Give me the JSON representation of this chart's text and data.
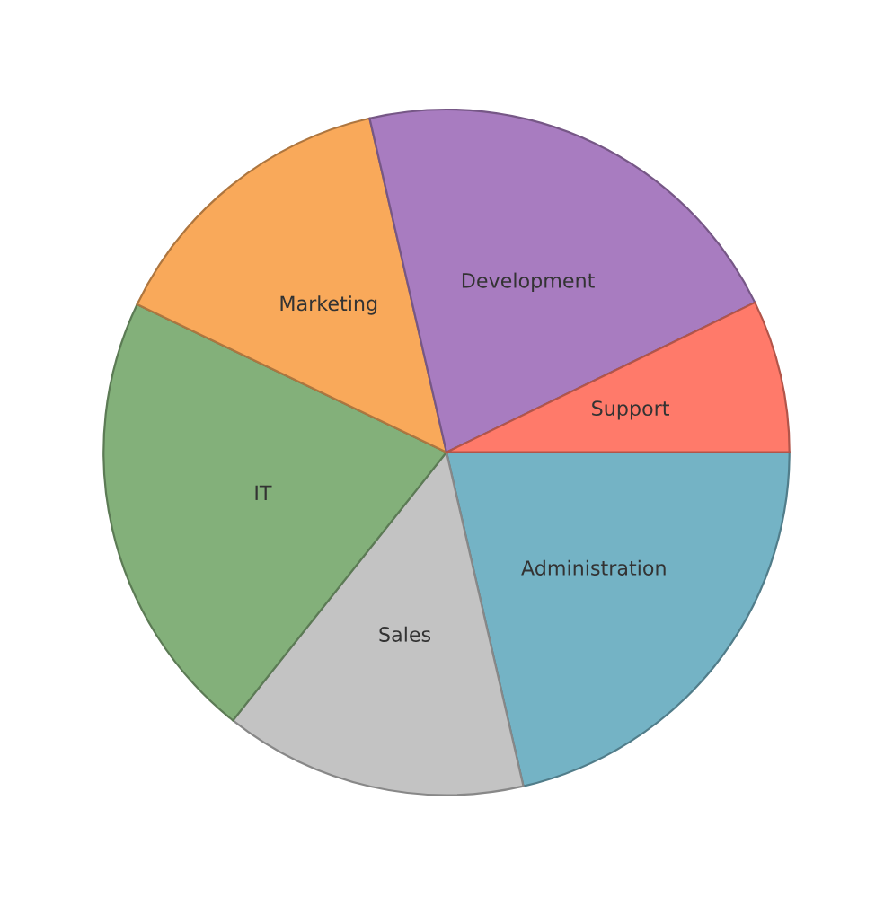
{
  "chart_data": {
    "type": "pie",
    "categories": [
      "Administration",
      "Sales",
      "IT",
      "Marketing",
      "Development",
      "Support"
    ],
    "values": [
      21.4,
      14.3,
      21.4,
      14.3,
      21.4,
      7.2
    ],
    "colors": [
      "#74b3c5",
      "#c3c3c3",
      "#83b07a",
      "#f9a95a",
      "#a87cc0",
      "#ff7a6a"
    ],
    "legend": false
  }
}
